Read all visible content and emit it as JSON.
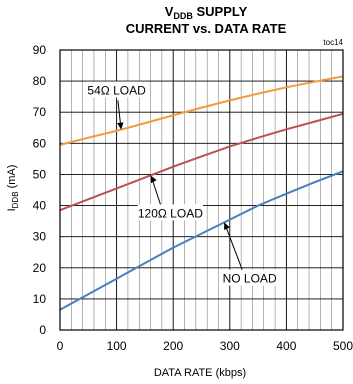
{
  "chart_data": {
    "type": "line",
    "title_line1_main": "V",
    "title_line1_sub": "DDB",
    "title_line1_rest": " SUPPLY",
    "title_line2": "CURRENT vs. DATA RATE",
    "figure_code": "toc14",
    "xlabel": "DATA RATE (kbps)",
    "ylabel_main": "I",
    "ylabel_sub": "DDB",
    "ylabel_rest": " (mA)",
    "xlim": [
      0,
      500
    ],
    "ylim": [
      0,
      90
    ],
    "x_ticks": [
      0,
      100,
      200,
      300,
      400,
      500
    ],
    "y_ticks": [
      0,
      10,
      20,
      30,
      40,
      50,
      60,
      70,
      80,
      90
    ],
    "grid": true,
    "series": [
      {
        "name": "54Ω LOAD",
        "color": "#f39a3d",
        "x": [
          0,
          50,
          100,
          150,
          200,
          250,
          300,
          350,
          400,
          450,
          500
        ],
        "y": [
          59.5,
          61.8,
          64.0,
          66.5,
          69.0,
          71.5,
          73.8,
          76.0,
          78.0,
          79.8,
          81.5
        ]
      },
      {
        "name": "120Ω LOAD",
        "color": "#c0504d",
        "x": [
          0,
          50,
          100,
          150,
          200,
          250,
          300,
          350,
          400,
          450,
          500
        ],
        "y": [
          38.5,
          42.0,
          45.5,
          49.0,
          52.5,
          55.8,
          59.0,
          61.8,
          64.5,
          67.0,
          69.5
        ]
      },
      {
        "name": "NO LOAD",
        "color": "#4a7fbf",
        "x": [
          0,
          50,
          100,
          150,
          200,
          250,
          300,
          350,
          400,
          450,
          500
        ],
        "y": [
          6.5,
          11.5,
          16.5,
          21.5,
          26.5,
          31.0,
          35.5,
          40.0,
          43.8,
          47.5,
          51.0
        ]
      }
    ],
    "annotations": [
      {
        "text": "54Ω LOAD",
        "series": 0,
        "x_target": 108,
        "label_x": 100,
        "label_y": 77
      },
      {
        "text": "120Ω LOAD",
        "series": 1,
        "x_target": 160,
        "label_x": 195,
        "label_y": 37.5
      },
      {
        "text": "NO LOAD",
        "series": 2,
        "x_target": 290,
        "label_x": 335,
        "label_y": 16.5
      }
    ]
  }
}
